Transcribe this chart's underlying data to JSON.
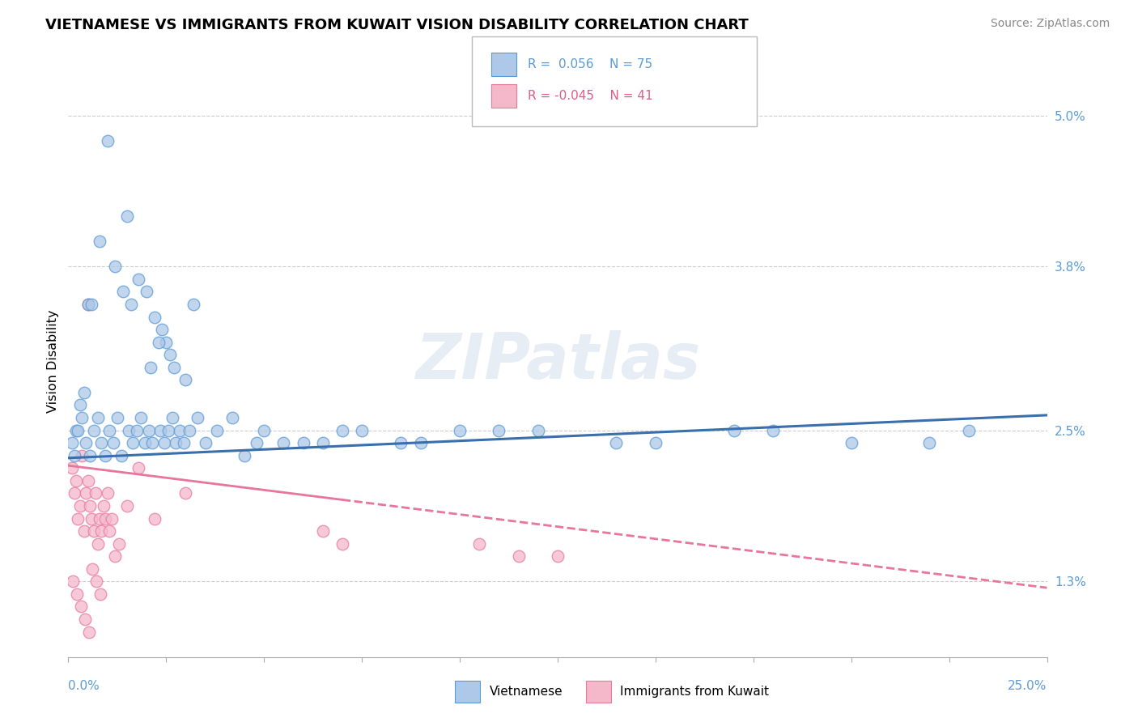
{
  "title": "VIETNAMESE VS IMMIGRANTS FROM KUWAIT VISION DISABILITY CORRELATION CHART",
  "source": "Source: ZipAtlas.com",
  "ylabel": "Vision Disability",
  "right_yticks": [
    1.3,
    2.5,
    3.8,
    5.0
  ],
  "right_ytick_labels": [
    "1.3%",
    "2.5%",
    "3.8%",
    "5.0%"
  ],
  "xmin": 0.0,
  "xmax": 25.0,
  "ymin": 0.7,
  "ymax": 5.4,
  "color_blue": "#adc8e8",
  "color_pink": "#f5b8cb",
  "color_blue_edge": "#5b9bd5",
  "color_pink_edge": "#e87aa0",
  "color_blue_line": "#3a6fad",
  "color_pink_line": "#e8759a",
  "color_blue_text": "#5b9bd5",
  "color_pink_text": "#e05c8a",
  "color_gray_text": "#888888",
  "watermark": "ZIPatlas",
  "viet_line_x0": 0.0,
  "viet_line_y0": 2.28,
  "viet_line_x1": 25.0,
  "viet_line_y1": 2.62,
  "kuwait_line_x0": 0.0,
  "kuwait_line_y0": 2.22,
  "kuwait_line_x1": 25.0,
  "kuwait_line_y1": 1.25,
  "kuwait_solid_end": 7.0,
  "vietnamese_x": [
    1.0,
    1.5,
    0.5,
    2.5,
    2.0,
    2.2,
    2.4,
    2.6,
    1.8,
    2.1,
    2.3,
    2.7,
    1.6,
    3.0,
    1.2,
    0.8,
    1.4,
    0.4,
    0.6,
    0.3,
    0.2,
    0.1,
    0.15,
    0.25,
    0.35,
    0.45,
    0.55,
    0.65,
    0.75,
    0.85,
    0.95,
    1.05,
    1.15,
    1.25,
    1.35,
    1.55,
    1.65,
    1.75,
    1.85,
    1.95,
    2.05,
    2.15,
    2.35,
    2.45,
    2.55,
    2.65,
    2.75,
    2.85,
    2.95,
    3.1,
    3.3,
    3.5,
    3.8,
    4.2,
    4.8,
    5.5,
    6.5,
    7.5,
    8.5,
    10.0,
    12.0,
    15.0,
    18.0,
    22.0,
    4.5,
    5.0,
    6.0,
    7.0,
    9.0,
    11.0,
    14.0,
    17.0,
    20.0,
    23.0,
    3.2
  ],
  "vietnamese_y": [
    4.8,
    4.2,
    3.5,
    3.2,
    3.6,
    3.4,
    3.3,
    3.1,
    3.7,
    3.0,
    3.2,
    3.0,
    3.5,
    2.9,
    3.8,
    4.0,
    3.6,
    2.8,
    3.5,
    2.7,
    2.5,
    2.4,
    2.3,
    2.5,
    2.6,
    2.4,
    2.3,
    2.5,
    2.6,
    2.4,
    2.3,
    2.5,
    2.4,
    2.6,
    2.3,
    2.5,
    2.4,
    2.5,
    2.6,
    2.4,
    2.5,
    2.4,
    2.5,
    2.4,
    2.5,
    2.6,
    2.4,
    2.5,
    2.4,
    2.5,
    2.6,
    2.4,
    2.5,
    2.6,
    2.4,
    2.4,
    2.4,
    2.5,
    2.4,
    2.5,
    2.5,
    2.4,
    2.5,
    2.4,
    2.3,
    2.5,
    2.4,
    2.5,
    2.4,
    2.5,
    2.4,
    2.5,
    2.4,
    2.5,
    3.5
  ],
  "kuwait_x": [
    0.1,
    0.15,
    0.2,
    0.25,
    0.3,
    0.35,
    0.4,
    0.45,
    0.5,
    0.55,
    0.6,
    0.65,
    0.7,
    0.75,
    0.8,
    0.85,
    0.9,
    0.95,
    1.0,
    1.05,
    1.1,
    1.2,
    1.3,
    1.5,
    1.8,
    2.2,
    3.0,
    6.5,
    7.0,
    10.5,
    11.5,
    12.5,
    0.12,
    0.22,
    0.32,
    0.42,
    0.52,
    0.62,
    0.72,
    0.82,
    0.5
  ],
  "kuwait_y": [
    2.2,
    2.0,
    2.1,
    1.8,
    1.9,
    2.3,
    1.7,
    2.0,
    2.1,
    1.9,
    1.8,
    1.7,
    2.0,
    1.6,
    1.8,
    1.7,
    1.9,
    1.8,
    2.0,
    1.7,
    1.8,
    1.5,
    1.6,
    1.9,
    2.2,
    1.8,
    2.0,
    1.7,
    1.6,
    1.6,
    1.5,
    1.5,
    1.3,
    1.2,
    1.1,
    1.0,
    0.9,
    1.4,
    1.3,
    1.2,
    3.5
  ]
}
